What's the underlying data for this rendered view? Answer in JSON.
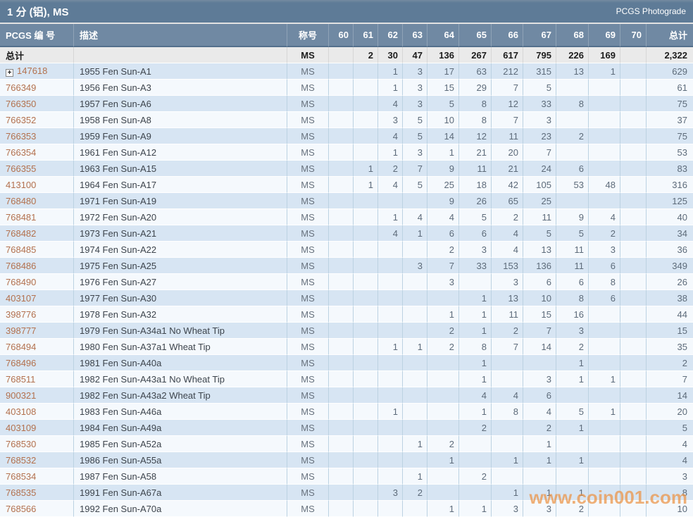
{
  "title_bar": {
    "title": "1 分 (铝), MS",
    "right_link": "PCGS Photograde"
  },
  "watermark": "www.coin001.com",
  "colors": {
    "title_bar_bg": "#5e7b97",
    "header_bg": "#7089a3",
    "row_blue": "#d7e5f3",
    "row_light": "#f5f9fd",
    "totals_bg": "#eaeaea",
    "link_color": "#b3714e",
    "watermark_color": "#ec9242"
  },
  "table": {
    "columns": {
      "pcgs": "PCGS 编 号",
      "desc": "描述",
      "grade_label": "称号",
      "grades": [
        "60",
        "61",
        "62",
        "63",
        "64",
        "65",
        "66",
        "67",
        "68",
        "69",
        "70"
      ],
      "total": "总计"
    },
    "totals": {
      "label": "总计",
      "designation": "MS",
      "values": [
        "",
        "2",
        "30",
        "47",
        "136",
        "267",
        "617",
        "795",
        "226",
        "169",
        ""
      ],
      "total": "2,322"
    },
    "rows": [
      {
        "pcgs": "147618",
        "expandable": true,
        "desc": "1955 Fen Sun-A1",
        "designation": "MS",
        "values": [
          "",
          "",
          "1",
          "3",
          "17",
          "63",
          "212",
          "315",
          "13",
          "1",
          ""
        ],
        "total": "629"
      },
      {
        "pcgs": "766349",
        "desc": "1956 Fen Sun-A3",
        "designation": "MS",
        "values": [
          "",
          "",
          "1",
          "3",
          "15",
          "29",
          "7",
          "5",
          "",
          "",
          ""
        ],
        "total": "61"
      },
      {
        "pcgs": "766350",
        "desc": "1957 Fen Sun-A6",
        "designation": "MS",
        "values": [
          "",
          "",
          "4",
          "3",
          "5",
          "8",
          "12",
          "33",
          "8",
          "",
          ""
        ],
        "total": "75"
      },
      {
        "pcgs": "766352",
        "desc": "1958 Fen Sun-A8",
        "designation": "MS",
        "values": [
          "",
          "",
          "3",
          "5",
          "10",
          "8",
          "7",
          "3",
          "",
          "",
          ""
        ],
        "total": "37"
      },
      {
        "pcgs": "766353",
        "desc": "1959 Fen Sun-A9",
        "designation": "MS",
        "values": [
          "",
          "",
          "4",
          "5",
          "14",
          "12",
          "11",
          "23",
          "2",
          "",
          ""
        ],
        "total": "75"
      },
      {
        "pcgs": "766354",
        "desc": "1961 Fen Sun-A12",
        "designation": "MS",
        "values": [
          "",
          "",
          "1",
          "3",
          "1",
          "21",
          "20",
          "7",
          "",
          "",
          ""
        ],
        "total": "53"
      },
      {
        "pcgs": "766355",
        "desc": "1963 Fen Sun-A15",
        "designation": "MS",
        "values": [
          "",
          "1",
          "2",
          "7",
          "9",
          "11",
          "21",
          "24",
          "6",
          "",
          ""
        ],
        "total": "83"
      },
      {
        "pcgs": "413100",
        "desc": "1964 Fen Sun-A17",
        "designation": "MS",
        "values": [
          "",
          "1",
          "4",
          "5",
          "25",
          "18",
          "42",
          "105",
          "53",
          "48",
          ""
        ],
        "total": "316"
      },
      {
        "pcgs": "768480",
        "desc": "1971 Fen Sun-A19",
        "designation": "MS",
        "values": [
          "",
          "",
          "",
          "",
          "9",
          "26",
          "65",
          "25",
          "",
          "",
          ""
        ],
        "total": "125"
      },
      {
        "pcgs": "768481",
        "desc": "1972 Fen Sun-A20",
        "designation": "MS",
        "values": [
          "",
          "",
          "1",
          "4",
          "4",
          "5",
          "2",
          "11",
          "9",
          "4",
          ""
        ],
        "total": "40"
      },
      {
        "pcgs": "768482",
        "desc": "1973 Fen Sun-A21",
        "designation": "MS",
        "values": [
          "",
          "",
          "4",
          "1",
          "6",
          "6",
          "4",
          "5",
          "5",
          "2",
          ""
        ],
        "total": "34"
      },
      {
        "pcgs": "768485",
        "desc": "1974 Fen Sun-A22",
        "designation": "MS",
        "values": [
          "",
          "",
          "",
          "",
          "2",
          "3",
          "4",
          "13",
          "11",
          "3",
          ""
        ],
        "total": "36"
      },
      {
        "pcgs": "768486",
        "desc": "1975 Fen Sun-A25",
        "designation": "MS",
        "values": [
          "",
          "",
          "",
          "3",
          "7",
          "33",
          "153",
          "136",
          "11",
          "6",
          ""
        ],
        "total": "349"
      },
      {
        "pcgs": "768490",
        "desc": "1976 Fen Sun-A27",
        "designation": "MS",
        "values": [
          "",
          "",
          "",
          "",
          "3",
          "",
          "3",
          "6",
          "6",
          "8",
          ""
        ],
        "total": "26"
      },
      {
        "pcgs": "403107",
        "desc": "1977 Fen Sun-A30",
        "designation": "MS",
        "values": [
          "",
          "",
          "",
          "",
          "",
          "1",
          "13",
          "10",
          "8",
          "6",
          ""
        ],
        "total": "38"
      },
      {
        "pcgs": "398776",
        "desc": "1978 Fen Sun-A32",
        "designation": "MS",
        "values": [
          "",
          "",
          "",
          "",
          "1",
          "1",
          "11",
          "15",
          "16",
          "",
          ""
        ],
        "total": "44"
      },
      {
        "pcgs": "398777",
        "desc": "1979 Fen Sun-A34a1 No Wheat Tip",
        "designation": "MS",
        "values": [
          "",
          "",
          "",
          "",
          "2",
          "1",
          "2",
          "7",
          "3",
          "",
          ""
        ],
        "total": "15"
      },
      {
        "pcgs": "768494",
        "desc": "1980 Fen Sun-A37a1 Wheat Tip",
        "designation": "MS",
        "values": [
          "",
          "",
          "1",
          "1",
          "2",
          "8",
          "7",
          "14",
          "2",
          "",
          ""
        ],
        "total": "35"
      },
      {
        "pcgs": "768496",
        "desc": "1981 Fen Sun-A40a",
        "designation": "MS",
        "values": [
          "",
          "",
          "",
          "",
          "",
          "1",
          "",
          "",
          "1",
          "",
          ""
        ],
        "total": "2"
      },
      {
        "pcgs": "768511",
        "desc": "1982 Fen Sun-A43a1 No Wheat Tip",
        "designation": "MS",
        "values": [
          "",
          "",
          "",
          "",
          "",
          "1",
          "",
          "3",
          "1",
          "1",
          ""
        ],
        "total": "7"
      },
      {
        "pcgs": "900321",
        "desc": "1982 Fen Sun-A43a2 Wheat Tip",
        "designation": "MS",
        "values": [
          "",
          "",
          "",
          "",
          "",
          "4",
          "4",
          "6",
          "",
          "",
          ""
        ],
        "total": "14"
      },
      {
        "pcgs": "403108",
        "desc": "1983 Fen Sun-A46a",
        "designation": "MS",
        "values": [
          "",
          "",
          "1",
          "",
          "",
          "1",
          "8",
          "4",
          "5",
          "1",
          ""
        ],
        "total": "20"
      },
      {
        "pcgs": "403109",
        "desc": "1984 Fen Sun-A49a",
        "designation": "MS",
        "values": [
          "",
          "",
          "",
          "",
          "",
          "2",
          "",
          "2",
          "1",
          "",
          ""
        ],
        "total": "5"
      },
      {
        "pcgs": "768530",
        "desc": "1985 Fen Sun-A52a",
        "designation": "MS",
        "values": [
          "",
          "",
          "",
          "1",
          "2",
          "",
          "",
          "1",
          "",
          "",
          ""
        ],
        "total": "4"
      },
      {
        "pcgs": "768532",
        "desc": "1986 Fen Sun-A55a",
        "designation": "MS",
        "values": [
          "",
          "",
          "",
          "",
          "1",
          "",
          "1",
          "1",
          "1",
          "",
          ""
        ],
        "total": "4"
      },
      {
        "pcgs": "768534",
        "desc": "1987 Fen Sun-A58",
        "designation": "MS",
        "values": [
          "",
          "",
          "",
          "1",
          "",
          "2",
          "",
          "",
          "",
          "",
          ""
        ],
        "total": "3"
      },
      {
        "pcgs": "768535",
        "desc": "1991 Fen Sun-A67a",
        "designation": "MS",
        "values": [
          "",
          "",
          "3",
          "2",
          "",
          "",
          "1",
          "1",
          "1",
          "",
          ""
        ],
        "total": "8"
      },
      {
        "pcgs": "768566",
        "desc": "1992 Fen Sun-A70a",
        "designation": "MS",
        "values": [
          "",
          "",
          "",
          "",
          "1",
          "1",
          "3",
          "3",
          "2",
          "",
          ""
        ],
        "total": "10"
      }
    ]
  }
}
